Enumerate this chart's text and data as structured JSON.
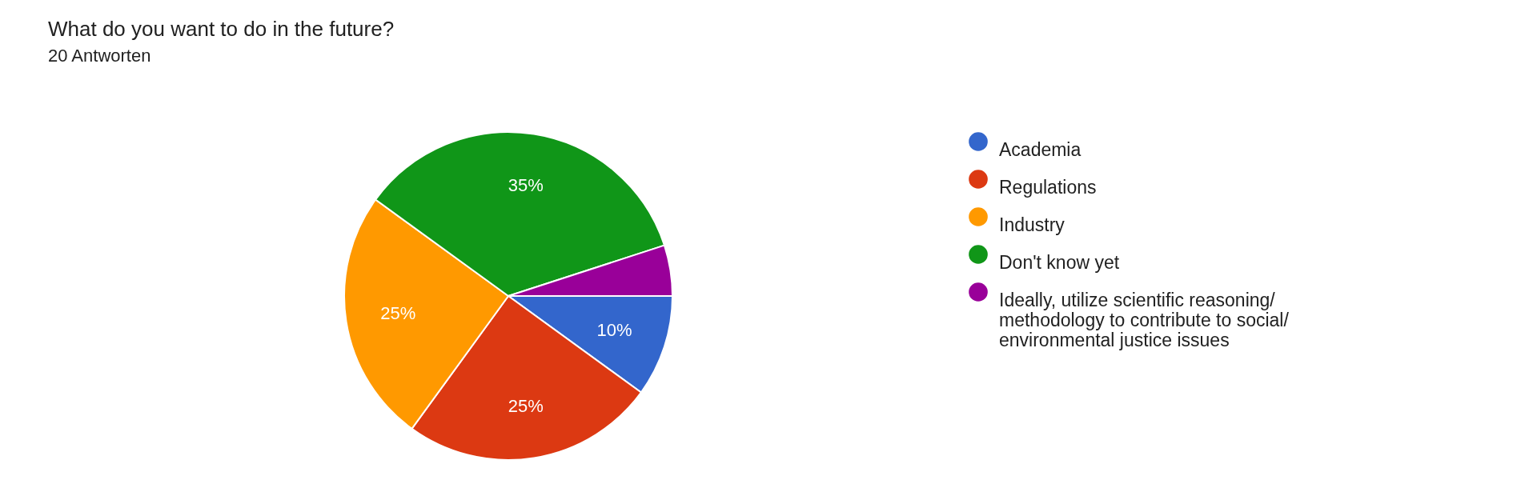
{
  "chart_data": {
    "type": "pie",
    "title": "What do you want to do in the future?",
    "subtitle": "20 Antworten",
    "categories": [
      "Academia",
      "Regulations",
      "Industry",
      "Don't know yet",
      "Ideally, utilize scientific reasoning/ methodology to contribute to social/ environmental justice issues"
    ],
    "values": [
      10,
      25,
      25,
      35,
      5
    ],
    "colors": [
      "#3366cc",
      "#dc3912",
      "#ff9900",
      "#109618",
      "#990099"
    ],
    "value_labels": [
      "10%",
      "25%",
      "25%",
      "35%",
      null
    ],
    "legend": "right"
  }
}
